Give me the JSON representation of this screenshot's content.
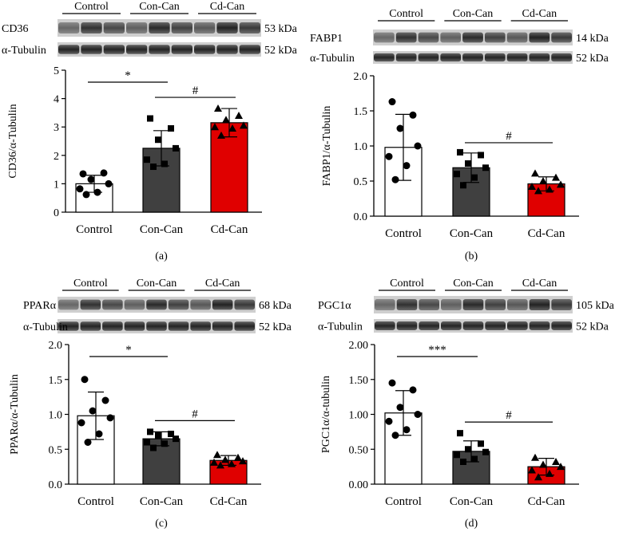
{
  "colors": {
    "control": "#ffffff",
    "con_can": "#404040",
    "cd_can": "#e00000",
    "blot_dark": "#1a1a1a"
  },
  "chart_data": [
    {
      "panel": "(a)",
      "type": "bar",
      "ylabel": "CD36/α-Tubulin",
      "categories": [
        "Control",
        "Con-Can",
        "Cd-Can"
      ],
      "group_headers": [
        "Control",
        "Con-Can",
        "Cd-Can"
      ],
      "blots": [
        {
          "protein": "CD36",
          "kda": "53 kDa"
        },
        {
          "protein": "α-Tubulin",
          "kda": "52 kDa"
        }
      ],
      "ylim": [
        0,
        5
      ],
      "yticks": [
        "0",
        "1",
        "2",
        "3",
        "4",
        "5"
      ],
      "values": [
        1.0,
        2.25,
        3.15
      ],
      "errors": [
        0.3,
        0.62,
        0.5
      ],
      "points": [
        [
          1.35,
          1.38,
          1.15,
          1.0,
          0.82,
          0.7,
          0.62
        ],
        [
          3.3,
          2.95,
          2.55,
          2.25,
          1.85,
          1.7,
          1.6
        ],
        [
          3.65,
          3.4,
          3.25,
          3.05,
          3.0,
          2.95,
          2.7
        ]
      ],
      "markers": [
        "circle",
        "square",
        "triangle"
      ],
      "sig": [
        {
          "label": "*",
          "from": 0,
          "to": 1
        },
        {
          "label": "#",
          "from": 1,
          "to": 2
        }
      ]
    },
    {
      "panel": "(b)",
      "type": "bar",
      "ylabel": "FABP1/α-Tubulin",
      "categories": [
        "Control",
        "Con-Can",
        "Cd-Can"
      ],
      "group_headers": [
        "Control",
        "Con-Can",
        "Cd-Can"
      ],
      "blots": [
        {
          "protein": "FABP1",
          "kda": "14 kDa"
        },
        {
          "protein": "α-Tubulin",
          "kda": "52 kDa"
        }
      ],
      "ylim": [
        0,
        2.0
      ],
      "yticks": [
        "0.0",
        "0.5",
        "1.0",
        "1.5",
        "2.0"
      ],
      "values": [
        0.98,
        0.69,
        0.46
      ],
      "errors": [
        0.47,
        0.21,
        0.1
      ],
      "points": [
        [
          1.63,
          1.44,
          1.25,
          1.0,
          0.85,
          0.72,
          0.52
        ],
        [
          0.91,
          0.87,
          0.75,
          0.69,
          0.6,
          0.55,
          0.44
        ],
        [
          0.61,
          0.55,
          0.5,
          0.45,
          0.42,
          0.38,
          0.36
        ]
      ],
      "markers": [
        "circle",
        "square",
        "triangle"
      ],
      "sig": [
        {
          "label": "#",
          "from": 1,
          "to": 2
        }
      ]
    },
    {
      "panel": "(c)",
      "type": "bar",
      "ylabel": "PPARα/α-Tubulin",
      "categories": [
        "Control",
        "Con-Can",
        "Cd-Can"
      ],
      "group_headers": [
        "Control",
        "Con-Can",
        "Cd-Can"
      ],
      "blots": [
        {
          "protein": "PPARα",
          "kda": "68 kDa"
        },
        {
          "protein": "α-Tubulin",
          "kda": "52 kDa"
        }
      ],
      "ylim": [
        0,
        2.0
      ],
      "yticks": [
        "0.0",
        "0.5",
        "1.0",
        "1.5",
        "2.0"
      ],
      "values": [
        0.98,
        0.65,
        0.34
      ],
      "errors": [
        0.34,
        0.1,
        0.07
      ],
      "points": [
        [
          1.5,
          1.2,
          1.05,
          0.95,
          0.88,
          0.72,
          0.6
        ],
        [
          0.75,
          0.72,
          0.7,
          0.65,
          0.6,
          0.58,
          0.52
        ],
        [
          0.42,
          0.38,
          0.35,
          0.33,
          0.31,
          0.29,
          0.27
        ]
      ],
      "markers": [
        "circle",
        "square",
        "triangle"
      ],
      "sig": [
        {
          "label": "*",
          "from": 0,
          "to": 1
        },
        {
          "label": "#",
          "from": 1,
          "to": 2
        }
      ]
    },
    {
      "panel": "(d)",
      "type": "bar",
      "ylabel": "PGC1α/α-tubulin",
      "categories": [
        "Control",
        "Con-Can",
        "Cd-Can"
      ],
      "group_headers": [
        "Control",
        "Con-Can",
        "Cd-Can"
      ],
      "blots": [
        {
          "protein": "PGC1α",
          "kda": "105 kDa"
        },
        {
          "protein": "α-Tubulin",
          "kda": "52 kDa"
        }
      ],
      "ylim": [
        0,
        2.0
      ],
      "yticks": [
        "0.00",
        "0.50",
        "1.00",
        "1.50",
        "2.00"
      ],
      "values": [
        1.02,
        0.47,
        0.25
      ],
      "errors": [
        0.32,
        0.15,
        0.12
      ],
      "points": [
        [
          1.45,
          1.35,
          1.1,
          1.0,
          0.9,
          0.78,
          0.7
        ],
        [
          0.73,
          0.58,
          0.5,
          0.46,
          0.42,
          0.36,
          0.32
        ],
        [
          0.38,
          0.32,
          0.28,
          0.25,
          0.2,
          0.15,
          0.1
        ]
      ],
      "markers": [
        "circle",
        "square",
        "triangle"
      ],
      "sig": [
        {
          "label": "***",
          "from": 0,
          "to": 1
        },
        {
          "label": "#",
          "from": 1,
          "to": 2
        }
      ]
    }
  ]
}
